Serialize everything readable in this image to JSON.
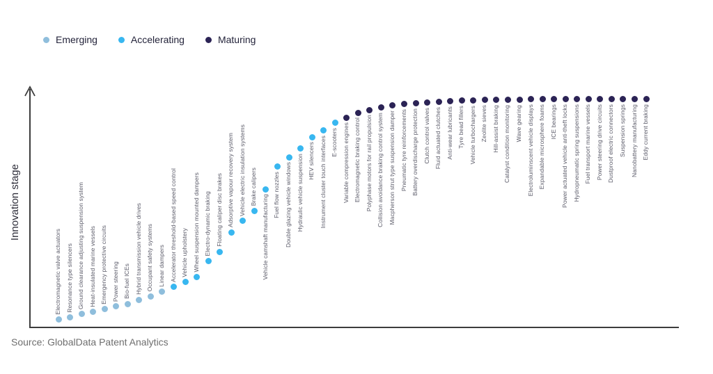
{
  "legend": {
    "items": [
      {
        "label": "Emerging",
        "color": "#8FBEDC"
      },
      {
        "label": "Accelerating",
        "color": "#38B7F0"
      },
      {
        "label": "Maturing",
        "color": "#2B2355"
      }
    ]
  },
  "axis": {
    "y_label": "Innovation stage"
  },
  "source": "Source: GlobalData Patent Analytics",
  "chart_data": {
    "type": "scatter",
    "title": "",
    "xlabel": "",
    "ylabel": "Innovation stage",
    "ylim": [
      0,
      100
    ],
    "grid": false,
    "legend_position": "top-left",
    "stage_colors": {
      "emerging": "#8FBEDC",
      "accelerating": "#38B7F0",
      "maturing": "#2B2355"
    },
    "points": [
      {
        "label": "Electromagnetic valve actuators",
        "stage": "emerging",
        "score": 3.3
      },
      {
        "label": "Resonance type silencers",
        "stage": "emerging",
        "score": 4.0
      },
      {
        "label": "Ground clearance adjusting suspension system",
        "stage": "emerging",
        "score": 5.5
      },
      {
        "label": "Heat-insulated marine vessels",
        "stage": "emerging",
        "score": 6.4
      },
      {
        "label": "Emergency protective circuits",
        "stage": "emerging",
        "score": 7.6
      },
      {
        "label": "Power steering",
        "stage": "emerging",
        "score": 8.8
      },
      {
        "label": "Bio-fuel ICEs",
        "stage": "emerging",
        "score": 10.0
      },
      {
        "label": "Hybrid transmission vehicle drives",
        "stage": "emerging",
        "score": 11.8
      },
      {
        "label": "Occupant safety systems",
        "stage": "emerging",
        "score": 13.3
      },
      {
        "label": "Linear dampers",
        "stage": "emerging",
        "score": 15.2
      },
      {
        "label": "Accelerator threshold-based speed control",
        "stage": "accelerating",
        "score": 17.3
      },
      {
        "label": "Vehicle upholstery",
        "stage": "accelerating",
        "score": 19.4
      },
      {
        "label": "Wheel suspension mounted dampers",
        "stage": "accelerating",
        "score": 21.8
      },
      {
        "label": "Electro-dynamic braking",
        "stage": "accelerating",
        "score": 28.5
      },
      {
        "label": "Floating caliper disc brakes",
        "stage": "accelerating",
        "score": 32.7
      },
      {
        "label": "Adsorptive vapour recovery system",
        "stage": "accelerating",
        "score": 41.2
      },
      {
        "label": "Vehicle electric insulation systems",
        "stage": "accelerating",
        "score": 46.1
      },
      {
        "label": "Brake calipers",
        "stage": "accelerating",
        "score": 50.6
      },
      {
        "label": "Vehicle camshaft manufacturing",
        "stage": "accelerating",
        "score": 60.0
      },
      {
        "label": "Fuel flow nozzles",
        "stage": "accelerating",
        "score": 69.7
      },
      {
        "label": "Double glazing vehicle windows",
        "stage": "accelerating",
        "score": 73.9
      },
      {
        "label": "Hydraulic vehicle suspension",
        "stage": "accelerating",
        "score": 77.6
      },
      {
        "label": "HEV silencers",
        "stage": "accelerating",
        "score": 82.7
      },
      {
        "label": "Instrument cluster touch interfaces",
        "stage": "accelerating",
        "score": 85.5
      },
      {
        "label": "E-scooters",
        "stage": "accelerating",
        "score": 88.8
      },
      {
        "label": "Variable compression engines",
        "stage": "maturing",
        "score": 91.2
      },
      {
        "label": "Electromagnetic braking control",
        "stage": "maturing",
        "score": 93.3
      },
      {
        "label": "Polyphase motors for rail propulsion",
        "stage": "maturing",
        "score": 94.5
      },
      {
        "label": "Collision avoidance braking control system",
        "stage": "maturing",
        "score": 95.5
      },
      {
        "label": "Macpherson strut type suspension damper",
        "stage": "maturing",
        "score": 96.4
      },
      {
        "label": "Pneumatic tyre reinforcements",
        "stage": "maturing",
        "score": 97.0
      },
      {
        "label": "Battery overdischarge protection",
        "stage": "maturing",
        "score": 97.3
      },
      {
        "label": "Clutch control valves",
        "stage": "maturing",
        "score": 97.6
      },
      {
        "label": "Fluid actuated clutches",
        "stage": "maturing",
        "score": 97.9
      },
      {
        "label": "Anti-wear lubricants",
        "stage": "maturing",
        "score": 98.2
      },
      {
        "label": "Tyre bead fillers",
        "stage": "maturing",
        "score": 98.5
      },
      {
        "label": "Vehicle turbochargers",
        "stage": "maturing",
        "score": 98.5
      },
      {
        "label": "Zeolite sieves",
        "stage": "maturing",
        "score": 98.8
      },
      {
        "label": "Hill-assist braking",
        "stage": "maturing",
        "score": 98.8
      },
      {
        "label": "Catalyst condition monitoring",
        "stage": "maturing",
        "score": 98.8
      },
      {
        "label": "Wave gearing",
        "stage": "maturing",
        "score": 98.8
      },
      {
        "label": "Electroluminscent vehicle displays",
        "stage": "maturing",
        "score": 99.1
      },
      {
        "label": "Expandable microsphere foams",
        "stage": "maturing",
        "score": 99.1
      },
      {
        "label": "ICE bearings",
        "stage": "maturing",
        "score": 99.1
      },
      {
        "label": "Power actuated vehicle anti-theft locks",
        "stage": "maturing",
        "score": 99.1
      },
      {
        "label": "Hydropneumatic spring suspensions",
        "stage": "maturing",
        "score": 99.1
      },
      {
        "label": "Fuel transport marine vessels",
        "stage": "maturing",
        "score": 99.1
      },
      {
        "label": "Power steering drive circuits",
        "stage": "maturing",
        "score": 99.1
      },
      {
        "label": "Dustproof electric connectors",
        "stage": "maturing",
        "score": 99.1
      },
      {
        "label": "Suspension springs",
        "stage": "maturing",
        "score": 99.1
      },
      {
        "label": "Nanobattery manufacturing",
        "stage": "maturing",
        "score": 99.1
      },
      {
        "label": "Eddy current braking",
        "stage": "maturing",
        "score": 99.1
      }
    ]
  }
}
